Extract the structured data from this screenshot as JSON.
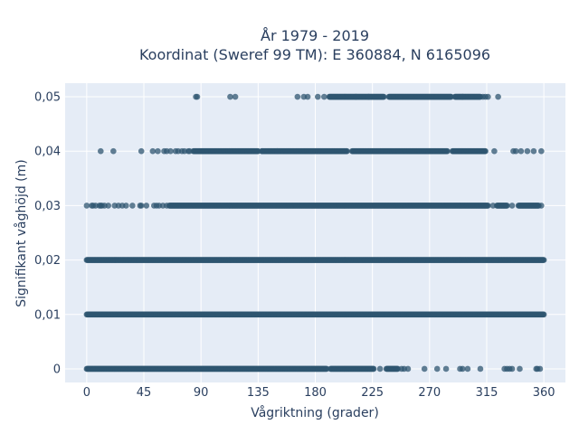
{
  "chart_data": {
    "type": "scatter",
    "title": "År 1979 - 2019",
    "subtitle": "Koordinat (Sweref 99 TM): E 360884, N 6165096",
    "xlabel": "Vågriktning (grader)",
    "ylabel": "Signifikant våghöjd (m)",
    "xlim": [
      -17,
      377
    ],
    "ylim": [
      -0.0025,
      0.0525
    ],
    "x_ticks": [
      0,
      45,
      90,
      135,
      180,
      225,
      270,
      315,
      360
    ],
    "x_tick_labels": [
      "0",
      "45",
      "90",
      "135",
      "180",
      "225",
      "270",
      "315",
      "360"
    ],
    "y_ticks": [
      0,
      0.01,
      0.02,
      0.03,
      0.04,
      0.05
    ],
    "y_tick_labels": [
      "0",
      "0,01",
      "0,02",
      "0,03",
      "0,04",
      "0,05"
    ],
    "grid": true,
    "marker_color": "#2f5570",
    "series": [
      {
        "y": 0,
        "dense_ranges": [
          [
            0,
            189
          ],
          [
            192,
            226
          ],
          [
            236,
            245
          ]
        ],
        "x_extra": [
          231,
          248,
          250,
          253,
          266,
          276,
          283,
          294,
          296,
          300,
          310,
          329,
          331,
          333,
          335,
          341,
          354,
          355,
          357
        ]
      },
      {
        "y": 0.01,
        "dense_ranges": [
          [
            0,
            360
          ]
        ],
        "x_extra": []
      },
      {
        "y": 0.02,
        "dense_ranges": [
          [
            0,
            360
          ]
        ],
        "x_extra": []
      },
      {
        "y": 0.03,
        "dense_ranges": [
          [
            65,
            316
          ],
          [
            323,
            331
          ],
          [
            340,
            356
          ]
        ],
        "x_extra": [
          0,
          4,
          5,
          7,
          10,
          11,
          12,
          14,
          17,
          22,
          25,
          28,
          31,
          36,
          42,
          43,
          47,
          53,
          55,
          57,
          60,
          63,
          320,
          335,
          358
        ]
      },
      {
        "y": 0.04,
        "dense_ranges": [
          [
            84,
            135
          ],
          [
            138,
            205
          ],
          [
            209,
            284
          ],
          [
            288,
            314
          ]
        ],
        "x_extra": [
          11,
          21,
          43,
          52,
          56,
          61,
          63,
          66,
          70,
          72,
          75,
          77,
          80,
          81,
          138,
          150,
          321,
          336,
          338,
          342,
          347,
          352,
          358
        ]
      },
      {
        "y": 0.05,
        "dense_ranges": [
          [
            191,
            234
          ],
          [
            238,
            287
          ],
          [
            290,
            310
          ]
        ],
        "x_extra": [
          86,
          87,
          113,
          117,
          166,
          171,
          174,
          182,
          187,
          212,
          222,
          296,
          312,
          314,
          316,
          324
        ]
      }
    ]
  }
}
